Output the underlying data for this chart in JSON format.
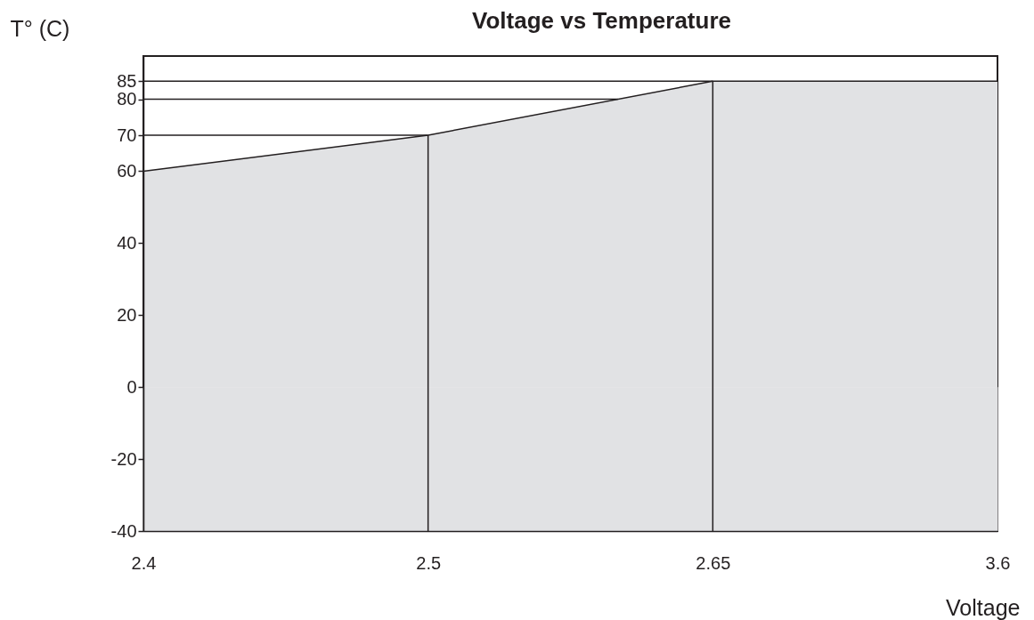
{
  "chart_data": {
    "type": "area",
    "title": "Voltage vs Temperature",
    "xlabel": "Voltage",
    "ylabel": "T° (C)",
    "categories": [
      "2.4",
      "2.5",
      "2.65",
      "3.6"
    ],
    "series": [
      {
        "color": "#e1e2e4",
        "values": [
          60,
          70,
          85,
          85
        ]
      }
    ],
    "ylim": [
      -40,
      92
    ],
    "yticks": [
      -40,
      -20,
      0,
      20,
      40,
      60,
      70,
      80,
      85
    ],
    "bands": [
      {
        "axis": "y",
        "from": -40,
        "to": 0,
        "color": "#e1e2e4"
      }
    ],
    "ref_lines": [
      {
        "axis": "y",
        "value": 70,
        "color": "#231f20"
      },
      {
        "axis": "y",
        "value": 80,
        "color": "#231f20"
      },
      {
        "axis": "y",
        "value": 85,
        "color": "#231f20"
      },
      {
        "axis": "x",
        "value": "2.5",
        "color": "#231f20"
      },
      {
        "axis": "x",
        "value": "2.65",
        "color": "#231f20"
      }
    ]
  }
}
